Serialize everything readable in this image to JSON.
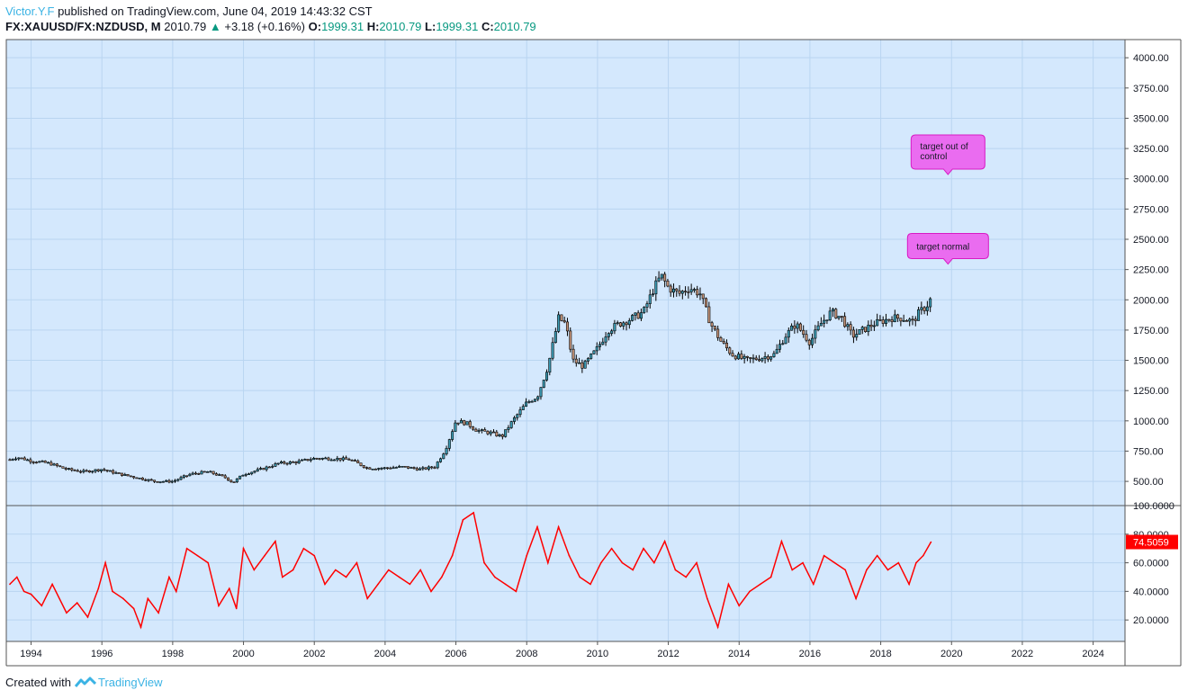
{
  "header": {
    "author": "Victor.Y.F",
    "published": "published on TradingView.com, June 04, 2019 14:43:32 CST",
    "symbol": "FX:XAUUSD/FX:NZDUSD, M",
    "last": "2010.79",
    "change": "+3.18 (+0.16%)",
    "o_label": "O:",
    "o_value": "1999.31",
    "h_label": "H:",
    "h_value": "2010.79",
    "l_label": "L:",
    "l_value": "1999.31",
    "c_label": "C:",
    "c_value": "2010.79"
  },
  "footer": {
    "created_with": "Created with",
    "brand": "TradingView"
  },
  "colors": {
    "pane_bg": "#d4e8fd",
    "osc_line": "#ff0000",
    "up_candle": "#3c9cb5",
    "down_candle": "#c6957a",
    "label_bg": "#ea6cf0",
    "label_border": "#d81bc4"
  },
  "annotations": [
    {
      "text": "target out of control",
      "date": 2019.9,
      "price": 3080
    },
    {
      "text": "target normal",
      "date": 2019.9,
      "price": 2340
    }
  ],
  "chart_data": [
    {
      "type": "candlestick",
      "xlim": [
        1993.3,
        2024.9
      ],
      "ylim": [
        300,
        4150
      ],
      "y_ticks": [
        500,
        750,
        1000,
        1250,
        1500,
        1750,
        2000,
        2250,
        2500,
        2750,
        3000,
        3250,
        3500,
        3750,
        4000
      ],
      "y_tick_labels": [
        "500.00",
        "750.00",
        "1000.00",
        "1250.00",
        "1500.00",
        "1750.00",
        "2000.00",
        "2250.00",
        "2500.00",
        "2750.00",
        "3000.00",
        "3250.00",
        "3500.00",
        "3750.00",
        "4000.00"
      ],
      "x_ticks": [
        1994,
        1996,
        1998,
        2000,
        2002,
        2004,
        2006,
        2008,
        2010,
        2012,
        2014,
        2016,
        2018,
        2020,
        2022,
        2024
      ],
      "x_tick_labels": [
        "1994",
        "1996",
        "1998",
        "2000",
        "2002",
        "2004",
        "2006",
        "2008",
        "2010",
        "2012",
        "2014",
        "2016",
        "2018",
        "2020",
        "2022",
        "2024"
      ],
      "close_path": {
        "x": [
          1993.4,
          1993.6,
          1994.0,
          1994.5,
          1995.0,
          1995.5,
          1996.0,
          1996.5,
          1997.0,
          1997.5,
          1998.0,
          1998.5,
          1999.0,
          1999.5,
          1999.7,
          2000.0,
          2000.5,
          2001.0,
          2001.5,
          2002.0,
          2002.5,
          2003.0,
          2003.5,
          2004.0,
          2004.5,
          2005.0,
          2005.4,
          2005.7,
          2006.0,
          2006.3,
          2006.6,
          2007.0,
          2007.3,
          2007.6,
          2008.0,
          2008.3,
          2008.6,
          2008.9,
          2009.1,
          2009.3,
          2009.6,
          2010.0,
          2010.3,
          2010.6,
          2011.0,
          2011.3,
          2011.6,
          2011.8,
          2012.0,
          2012.3,
          2012.6,
          2012.9,
          2013.2,
          2013.5,
          2013.8,
          2014.2,
          2014.6,
          2015.0,
          2015.3,
          2015.6,
          2016.0,
          2016.3,
          2016.6,
          2016.9,
          2017.2,
          2017.5,
          2017.8,
          2018.0,
          2018.3,
          2018.6,
          2018.9,
          2019.1,
          2019.3,
          2019.42
        ],
        "y": [
          680,
          700,
          670,
          650,
          600,
          580,
          600,
          560,
          530,
          500,
          500,
          560,
          580,
          530,
          490,
          560,
          600,
          650,
          660,
          690,
          690,
          680,
          610,
          610,
          620,
          600,
          620,
          760,
          1000,
          980,
          920,
          900,
          870,
          1000,
          1150,
          1200,
          1450,
          1850,
          1800,
          1500,
          1450,
          1600,
          1750,
          1800,
          1850,
          1900,
          2100,
          2200,
          2100,
          2050,
          2100,
          2050,
          1800,
          1650,
          1550,
          1500,
          1520,
          1550,
          1700,
          1800,
          1650,
          1800,
          1900,
          1850,
          1700,
          1750,
          1800,
          1820,
          1850,
          1850,
          1820,
          1900,
          1950,
          2010
        ]
      },
      "last": {
        "open": 1999.31,
        "high": 2010.79,
        "low": 1999.31,
        "close": 2010.79
      }
    },
    {
      "type": "line",
      "ylim": [
        5,
        100
      ],
      "y_ticks": [
        20,
        40,
        60,
        80,
        100
      ],
      "y_tick_labels": [
        "20.0000",
        "40.0000",
        "60.0000",
        "80.0000",
        "100.0000"
      ],
      "last_value_label": "74.5059",
      "series": [
        {
          "x": [
            1993.4,
            1993.6,
            1993.8,
            1994.0,
            1994.3,
            1994.6,
            1995.0,
            1995.3,
            1995.6,
            1995.9,
            1996.1,
            1996.3,
            1996.6,
            1996.9,
            1997.1,
            1997.3,
            1997.6,
            1997.9,
            1998.1,
            1998.4,
            1998.7,
            1999.0,
            1999.3,
            1999.6,
            1999.8,
            2000.0,
            2000.3,
            2000.6,
            2000.9,
            2001.1,
            2001.4,
            2001.7,
            2002.0,
            2002.3,
            2002.6,
            2002.9,
            2003.2,
            2003.5,
            2003.8,
            2004.1,
            2004.4,
            2004.7,
            2005.0,
            2005.3,
            2005.6,
            2005.9,
            2006.2,
            2006.5,
            2006.8,
            2007.1,
            2007.4,
            2007.7,
            2008.0,
            2008.3,
            2008.6,
            2008.9,
            2009.2,
            2009.5,
            2009.8,
            2010.1,
            2010.4,
            2010.7,
            2011.0,
            2011.3,
            2011.6,
            2011.9,
            2012.2,
            2012.5,
            2012.8,
            2013.1,
            2013.4,
            2013.7,
            2014.0,
            2014.3,
            2014.6,
            2014.9,
            2015.2,
            2015.5,
            2015.8,
            2016.1,
            2016.4,
            2016.7,
            2017.0,
            2017.3,
            2017.6,
            2017.9,
            2018.2,
            2018.5,
            2018.8,
            2019.0,
            2019.2,
            2019.42
          ],
          "y": [
            45,
            50,
            40,
            38,
            30,
            45,
            25,
            32,
            22,
            42,
            60,
            40,
            35,
            28,
            15,
            35,
            25,
            50,
            40,
            70,
            65,
            60,
            30,
            42,
            28,
            70,
            55,
            65,
            75,
            50,
            55,
            70,
            65,
            45,
            55,
            50,
            60,
            35,
            45,
            55,
            50,
            45,
            55,
            40,
            50,
            65,
            90,
            95,
            60,
            50,
            45,
            40,
            65,
            85,
            60,
            85,
            65,
            50,
            45,
            60,
            70,
            60,
            55,
            70,
            60,
            75,
            55,
            50,
            60,
            35,
            15,
            45,
            30,
            40,
            45,
            50,
            75,
            55,
            60,
            45,
            65,
            60,
            55,
            35,
            55,
            65,
            55,
            60,
            45,
            60,
            65,
            74.5059
          ]
        }
      ]
    }
  ]
}
